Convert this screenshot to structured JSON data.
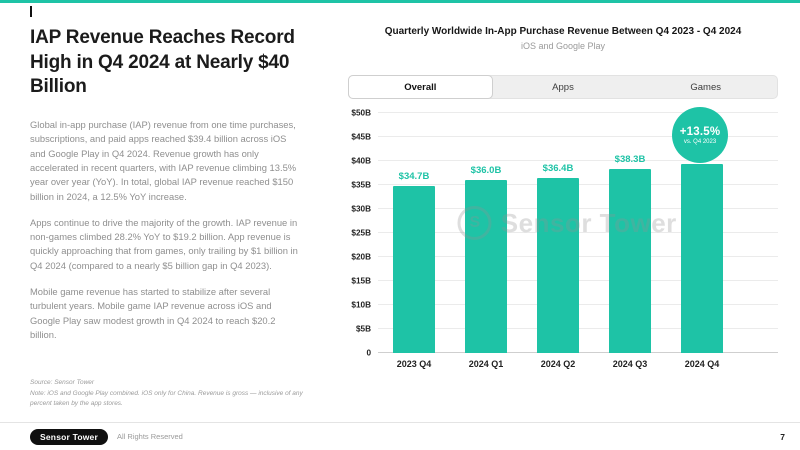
{
  "accent_color": "#1EC3A6",
  "left_panel": {
    "title": "IAP Revenue Reaches Record High in Q4 2024 at Nearly $40 Billion",
    "paragraphs": [
      "Global in-app purchase (IAP) revenue from one time purchases, subscriptions, and paid apps reached $39.4 billion across iOS and Google Play in Q4 2024. Revenue growth has only accelerated in recent quarters, with IAP revenue climbing 13.5% year over year (YoY). In total, global IAP revenue reached $150 billion in 2024, a 12.5% YoY increase.",
      "Apps continue to drive the majority of the growth. IAP revenue in non-games climbed 28.2% YoY to $19.2 billion. App revenue is quickly approaching that from games, only trailing by $1 billion in Q4 2024 (compared to a nearly $5 billion gap in Q4 2023).",
      "Mobile game revenue has started to stabilize after several turbulent years. Mobile game IAP revenue across iOS and Google Play saw modest growth in Q4 2024 to reach $20.2 billion."
    ],
    "source": "Source: Sensor Tower",
    "note": "Note: iOS and Google Play combined. iOS only for China. Revenue is gross — inclusive of any percent taken by the app stores."
  },
  "chart": {
    "title": "Quarterly Worldwide In-App Purchase Revenue Between Q4 2023 - Q4 2024",
    "subtitle": "iOS and Google Play",
    "tabs": [
      {
        "label": "Overall",
        "active": true
      },
      {
        "label": "Apps",
        "active": false
      },
      {
        "label": "Games",
        "active": false
      }
    ],
    "badge": {
      "value": "+13.5%",
      "caption": "vs. Q4 2023"
    },
    "watermark_icon": "S",
    "watermark": "Sensor Tower"
  },
  "chart_data": {
    "type": "bar",
    "title": "Quarterly Worldwide In-App Purchase Revenue Between Q4 2023 - Q4 2024",
    "subtitle": "iOS and Google Play",
    "categories": [
      "2023 Q4",
      "2024 Q1",
      "2024 Q2",
      "2024 Q3",
      "2024 Q4"
    ],
    "values": [
      34.7,
      36.0,
      36.4,
      38.3,
      39.4
    ],
    "labels": [
      "$34.7B",
      "$36.0B",
      "$36.4B",
      "$38.3B",
      "$39.4B"
    ],
    "xlabel": "",
    "ylabel": "",
    "ylim": [
      0,
      50
    ],
    "ytick_step": 5,
    "ytick_labels": [
      "0",
      "$5B",
      "$10B",
      "$15B",
      "$20B",
      "$25B",
      "$30B",
      "$35B",
      "$40B",
      "$45B",
      "$50B"
    ],
    "grid": true,
    "bar_color": "#1EC3A6",
    "annotation": {
      "value": "+13.5%",
      "caption": "vs. Q4 2023"
    }
  },
  "footer": {
    "logo": "Sensor Tower",
    "rights": "All Rights Reserved",
    "page": "7"
  }
}
